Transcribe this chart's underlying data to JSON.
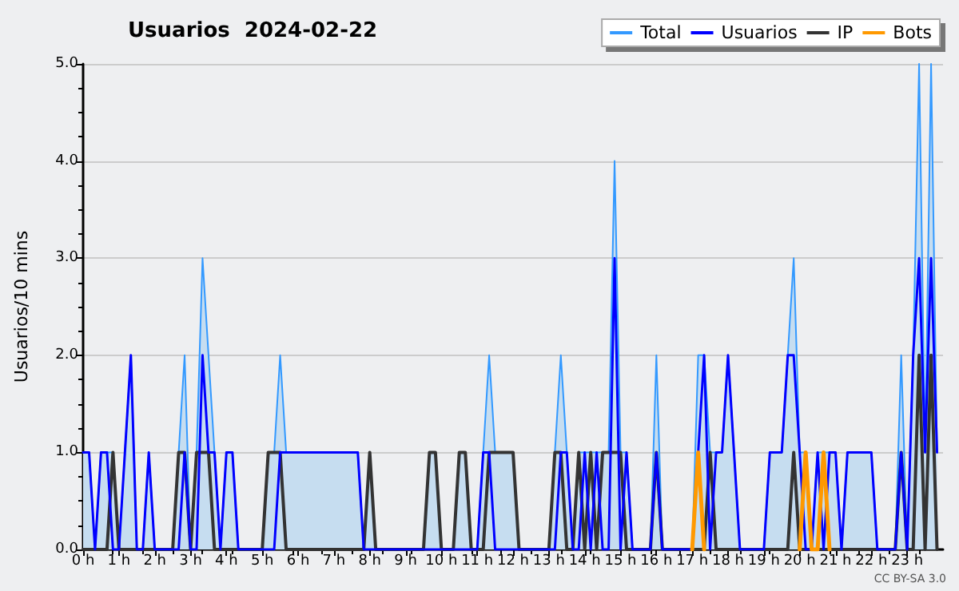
{
  "chart_data": {
    "type": "line",
    "title": "Usuarios  2024-02-22",
    "ylabel": "Usuarios/10 mins",
    "annotations": [
      "CC BY-SA 3.0"
    ],
    "x": [
      0,
      0.167,
      0.333,
      0.5,
      0.667,
      0.833,
      1,
      1.167,
      1.333,
      1.5,
      1.667,
      1.833,
      2,
      2.167,
      2.333,
      2.5,
      2.667,
      2.833,
      3,
      3.167,
      3.333,
      3.5,
      3.667,
      3.833,
      4,
      4.167,
      4.333,
      4.5,
      4.667,
      4.833,
      5,
      5.167,
      5.333,
      5.5,
      5.667,
      5.833,
      6,
      6.167,
      6.333,
      6.5,
      6.667,
      6.833,
      7,
      7.167,
      7.333,
      7.5,
      7.667,
      7.833,
      8,
      8.167,
      8.333,
      8.5,
      8.667,
      8.833,
      9,
      9.167,
      9.333,
      9.5,
      9.667,
      9.833,
      10,
      10.167,
      10.333,
      10.5,
      10.667,
      10.833,
      11,
      11.167,
      11.333,
      11.5,
      11.667,
      11.833,
      12,
      12.167,
      12.333,
      12.5,
      12.667,
      12.833,
      13,
      13.167,
      13.333,
      13.5,
      13.667,
      13.833,
      14,
      14.167,
      14.333,
      14.5,
      14.667,
      14.833,
      15,
      15.167,
      15.333,
      15.5,
      15.667,
      15.833,
      16,
      16.167,
      16.333,
      16.5,
      16.667,
      16.833,
      17,
      17.167,
      17.333,
      17.5,
      17.667,
      17.833,
      18,
      18.167,
      18.333,
      18.5,
      18.667,
      18.833,
      19,
      19.167,
      19.333,
      19.5,
      19.667,
      19.833,
      20,
      20.167,
      20.333,
      20.5,
      20.667,
      20.833,
      21,
      21.167,
      21.333,
      21.5,
      21.667,
      21.833,
      22,
      22.167,
      22.333,
      22.5,
      22.667,
      22.833,
      23,
      23.167,
      23.333,
      23.5,
      23.667,
      23.833
    ],
    "series": [
      {
        "name": "Total",
        "type": "area",
        "color": "#3399ff",
        "values": [
          1,
          1,
          0,
          1,
          1,
          1,
          0,
          1,
          2,
          0,
          0,
          1,
          0,
          0,
          0,
          0,
          1,
          2,
          0,
          1,
          3,
          2,
          1,
          0,
          1,
          1,
          0,
          0,
          0,
          0,
          0,
          1,
          1,
          2,
          1,
          1,
          1,
          1,
          1,
          1,
          1,
          1,
          1,
          1,
          1,
          1,
          1,
          0,
          1,
          0,
          0,
          0,
          0,
          0,
          0,
          0,
          0,
          0,
          1,
          1,
          0,
          0,
          0,
          1,
          1,
          0,
          0,
          1,
          2,
          1,
          1,
          1,
          1,
          0,
          0,
          0,
          0,
          0,
          0,
          1,
          2,
          1,
          0,
          1,
          1,
          1,
          1,
          1,
          1,
          4,
          1,
          1,
          0,
          0,
          0,
          0,
          2,
          0,
          0,
          0,
          0,
          0,
          0,
          2,
          2,
          1,
          1,
          1,
          2,
          1,
          0,
          0,
          0,
          0,
          0,
          1,
          1,
          1,
          2,
          3,
          1,
          1,
          0,
          1,
          1,
          1,
          1,
          0,
          1,
          1,
          1,
          1,
          1,
          0,
          0,
          0,
          0,
          2,
          0,
          2,
          5,
          1,
          5,
          1
        ]
      },
      {
        "name": "Usuarios",
        "color": "#0000ff",
        "values": [
          1,
          1,
          0,
          1,
          1,
          0,
          0,
          1,
          2,
          0,
          0,
          1,
          0,
          0,
          0,
          0,
          0,
          1,
          0,
          0,
          2,
          1,
          1,
          0,
          1,
          1,
          0,
          0,
          0,
          0,
          0,
          0,
          0,
          1,
          1,
          1,
          1,
          1,
          1,
          1,
          1,
          1,
          1,
          1,
          1,
          1,
          1,
          0,
          0,
          0,
          0,
          0,
          0,
          0,
          0,
          0,
          0,
          0,
          0,
          0,
          0,
          0,
          0,
          0,
          0,
          0,
          0,
          1,
          1,
          0,
          0,
          0,
          0,
          0,
          0,
          0,
          0,
          0,
          0,
          0,
          1,
          1,
          0,
          0,
          1,
          0,
          1,
          0,
          0,
          3,
          0,
          1,
          0,
          0,
          0,
          0,
          1,
          0,
          0,
          0,
          0,
          0,
          0,
          1,
          2,
          0,
          1,
          1,
          2,
          1,
          0,
          0,
          0,
          0,
          0,
          1,
          1,
          1,
          2,
          2,
          1,
          0,
          0,
          1,
          0,
          1,
          1,
          0,
          1,
          1,
          1,
          1,
          1,
          0,
          0,
          0,
          0,
          1,
          0,
          2,
          3,
          1,
          3,
          1
        ]
      },
      {
        "name": "IP",
        "color": "#333333",
        "values": [
          0,
          0,
          0,
          0,
          0,
          1,
          0,
          0,
          0,
          0,
          0,
          0,
          0,
          0,
          0,
          0,
          1,
          1,
          0,
          1,
          1,
          1,
          0,
          0,
          0,
          0,
          0,
          0,
          0,
          0,
          0,
          1,
          1,
          1,
          0,
          0,
          0,
          0,
          0,
          0,
          0,
          0,
          0,
          0,
          0,
          0,
          0,
          0,
          1,
          0,
          0,
          0,
          0,
          0,
          0,
          0,
          0,
          0,
          1,
          1,
          0,
          0,
          0,
          1,
          1,
          0,
          0,
          0,
          1,
          1,
          1,
          1,
          1,
          0,
          0,
          0,
          0,
          0,
          0,
          1,
          1,
          0,
          0,
          1,
          0,
          1,
          0,
          1,
          1,
          1,
          1,
          0,
          0,
          0,
          0,
          0,
          1,
          0,
          0,
          0,
          0,
          0,
          0,
          0,
          0,
          1,
          0,
          0,
          0,
          0,
          0,
          0,
          0,
          0,
          0,
          0,
          0,
          0,
          0,
          1,
          0,
          0,
          0,
          0,
          0,
          0,
          0,
          0,
          0,
          0,
          0,
          0,
          0,
          0,
          0,
          0,
          0,
          1,
          0,
          0,
          2,
          0,
          2,
          0
        ]
      },
      {
        "name": "Bots",
        "color": "#ff9900",
        "values": [
          null,
          null,
          null,
          null,
          null,
          null,
          null,
          null,
          null,
          null,
          null,
          null,
          null,
          null,
          null,
          null,
          null,
          null,
          null,
          null,
          null,
          null,
          null,
          null,
          null,
          null,
          null,
          null,
          null,
          null,
          null,
          null,
          null,
          null,
          null,
          null,
          null,
          null,
          null,
          null,
          null,
          null,
          null,
          null,
          null,
          null,
          null,
          null,
          null,
          null,
          null,
          null,
          null,
          null,
          null,
          null,
          null,
          null,
          null,
          null,
          null,
          null,
          null,
          null,
          null,
          null,
          null,
          null,
          null,
          null,
          null,
          null,
          null,
          null,
          null,
          null,
          null,
          null,
          null,
          null,
          null,
          null,
          null,
          null,
          null,
          null,
          null,
          null,
          null,
          null,
          null,
          null,
          null,
          null,
          null,
          null,
          null,
          null,
          null,
          null,
          null,
          null,
          0,
          1,
          0,
          null,
          null,
          null,
          null,
          null,
          null,
          null,
          null,
          null,
          null,
          null,
          null,
          null,
          null,
          null,
          0,
          1,
          0,
          0,
          1,
          0,
          null,
          null,
          null,
          null,
          null,
          null,
          null,
          null,
          null,
          null,
          null,
          null,
          null,
          null,
          null,
          null,
          null,
          null
        ]
      }
    ],
    "xlim": [
      0,
      24
    ],
    "xticks": [
      {
        "value": 0,
        "label": "0 h"
      },
      {
        "value": 1,
        "label": "1 h"
      },
      {
        "value": 2,
        "label": "2 h"
      },
      {
        "value": 3,
        "label": "3 h"
      },
      {
        "value": 4,
        "label": "4 h"
      },
      {
        "value": 5,
        "label": "5 h"
      },
      {
        "value": 6,
        "label": "6 h"
      },
      {
        "value": 7,
        "label": "7 h"
      },
      {
        "value": 8,
        "label": "8 h"
      },
      {
        "value": 9,
        "label": "9 h"
      },
      {
        "value": 10,
        "label": "10 h"
      },
      {
        "value": 11,
        "label": "11 h"
      },
      {
        "value": 12,
        "label": "12 h"
      },
      {
        "value": 13,
        "label": "13 h"
      },
      {
        "value": 14,
        "label": "14 h"
      },
      {
        "value": 15,
        "label": "15 h"
      },
      {
        "value": 16,
        "label": "16 h"
      },
      {
        "value": 17,
        "label": "17 h"
      },
      {
        "value": 18,
        "label": "18 h"
      },
      {
        "value": 19,
        "label": "19 h"
      },
      {
        "value": 20,
        "label": "20 h"
      },
      {
        "value": 21,
        "label": "21 h"
      },
      {
        "value": 22,
        "label": "22 h"
      },
      {
        "value": 23,
        "label": "23 h"
      }
    ],
    "ylim": [
      0,
      5
    ],
    "yticks": [
      {
        "value": 0,
        "label": "0.0"
      },
      {
        "value": 1,
        "label": "1.0"
      },
      {
        "value": 2,
        "label": "2.0"
      },
      {
        "value": 3,
        "label": "3.0"
      },
      {
        "value": 4,
        "label": "4.0"
      },
      {
        "value": 5,
        "label": "5.0"
      }
    ],
    "grid": "y",
    "legend": "top right",
    "marker": "none",
    "line_style": "solid"
  }
}
